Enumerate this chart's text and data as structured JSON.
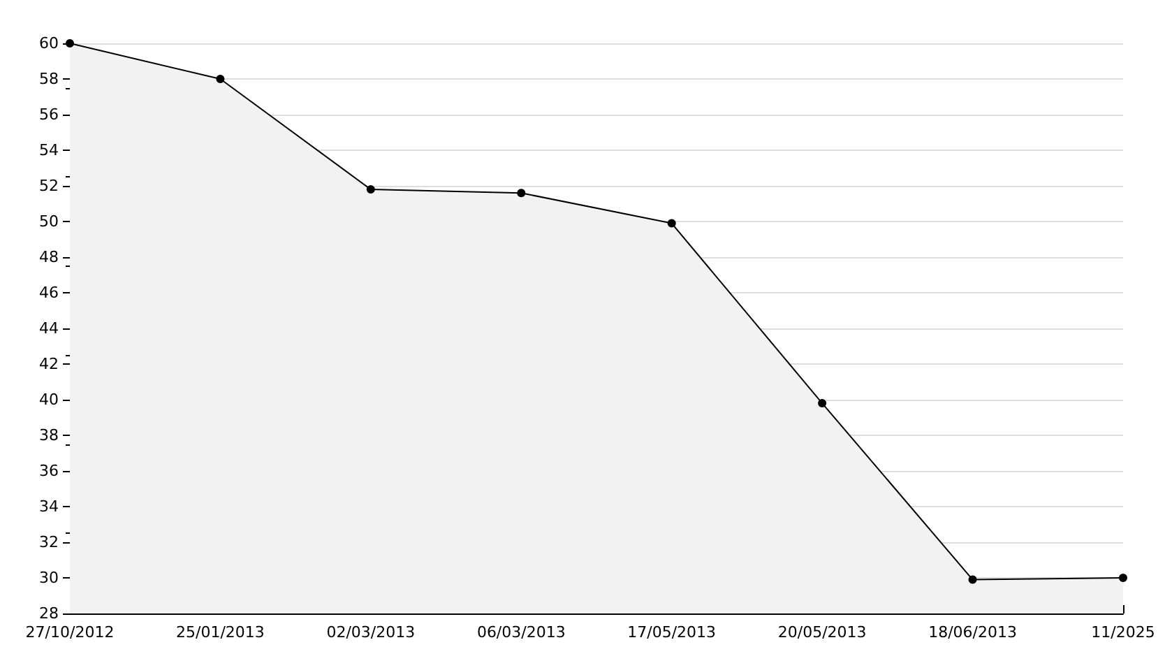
{
  "chart_data": {
    "type": "area",
    "categories": [
      "27/10/2012",
      "25/01/2013",
      "02/03/2013",
      "06/03/2013",
      "17/05/2013",
      "20/05/2013",
      "18/06/2013",
      "11/2025"
    ],
    "series": [
      {
        "color": "#000000",
        "values": [
          60,
          58,
          51.8,
          51.6,
          49.9,
          39.8,
          29.9,
          30.0
        ]
      }
    ],
    "ylim": [
      28,
      60
    ],
    "yticks": [
      28,
      30,
      32,
      34,
      36,
      38,
      40,
      42,
      44,
      46,
      48,
      50,
      52,
      54,
      56,
      58,
      60
    ],
    "grid": "y",
    "marker": "circle",
    "line_style": "solid"
  }
}
